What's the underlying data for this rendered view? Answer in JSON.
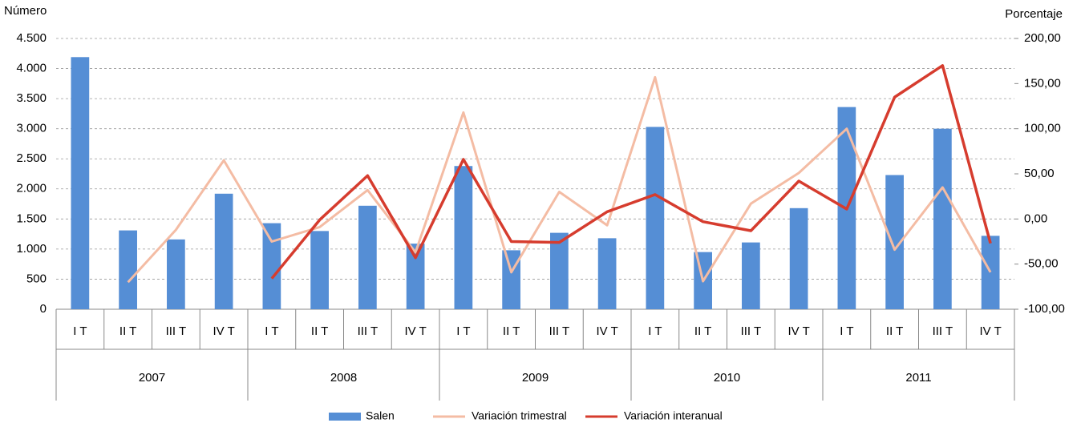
{
  "chart_data": {
    "type": "bar_line",
    "y_label": "Número",
    "y2_label": "Porcentaje",
    "categories": [
      "I T",
      "II T",
      "III T",
      "IV T",
      "I T",
      "II T",
      "III T",
      "IV T",
      "I T",
      "II T",
      "III T",
      "IV T",
      "I T",
      "II T",
      "III T",
      "IV T",
      "I T",
      "II T",
      "III T",
      "IV T"
    ],
    "groups": [
      "2007",
      "2008",
      "2009",
      "2010",
      "2011"
    ],
    "series": [
      {
        "name": "Salen",
        "type": "bar",
        "color": "#558ed5",
        "values": [
          4190,
          1310,
          1160,
          1920,
          1430,
          1300,
          1720,
          1090,
          2380,
          980,
          1270,
          1180,
          3030,
          950,
          1110,
          1680,
          3360,
          2230,
          3000,
          1220
        ]
      },
      {
        "name": "Variación trimestral",
        "type": "line",
        "axis": "y2",
        "color": "#f4bca4",
        "values": [
          null,
          -70,
          -12,
          65,
          -25,
          -9,
          32,
          -37,
          118,
          -59,
          30,
          -7,
          157,
          -69,
          17,
          51,
          100,
          -34,
          35,
          -59
        ]
      },
      {
        "name": "Variación interanual",
        "type": "line",
        "axis": "y2",
        "color": "#d63c2e",
        "values": [
          null,
          null,
          null,
          null,
          -66,
          -1,
          48,
          -43,
          66,
          -25,
          -26,
          8,
          27,
          -3,
          -13,
          42,
          11,
          135,
          170,
          -27
        ]
      }
    ],
    "ylim": [
      0,
      4500
    ],
    "yticks": [
      0,
      {
        "value": 500,
        "label": "500"
      },
      {
        "value": 1000,
        "label": "1.000"
      },
      {
        "value": 1500,
        "label": "1.500"
      },
      {
        "value": 2000,
        "label": "2.000"
      },
      {
        "value": 2500,
        "label": "2.500"
      },
      {
        "value": 3000,
        "label": "3.000"
      },
      {
        "value": 3500,
        "label": "3.500"
      },
      {
        "value": 4000,
        "label": "4.000"
      },
      {
        "value": 4500,
        "label": "4.500"
      }
    ],
    "y2lim": [
      -100,
      200
    ],
    "y2ticks": [
      {
        "value": -100,
        "label": "-100,00"
      },
      {
        "value": -50,
        "label": "-50,00"
      },
      {
        "value": 0,
        "label": "0,00"
      },
      {
        "value": 50,
        "label": "50,00"
      },
      {
        "value": 100,
        "label": "100,00"
      },
      {
        "value": 150,
        "label": "150,00"
      },
      {
        "value": 200,
        "label": "200,00"
      }
    ],
    "grid": true,
    "legend": "bottom"
  }
}
